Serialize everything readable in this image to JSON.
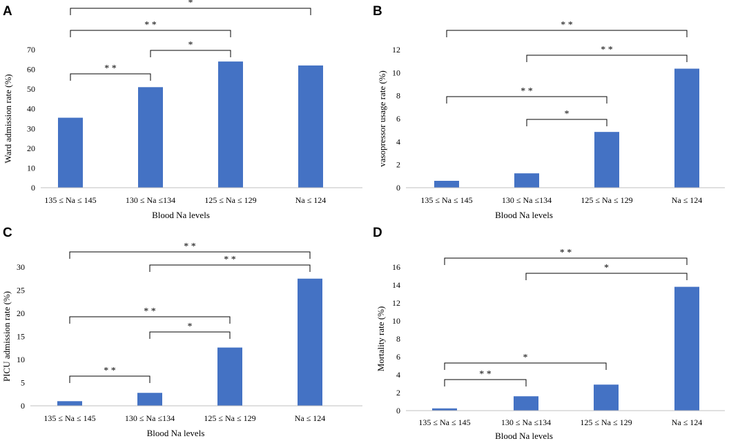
{
  "chart_data": [
    {
      "panel": "A",
      "type": "bar",
      "categories": [
        "135 ≤ Na ≤ 145",
        "130 ≤ Na ≤134",
        "125 ≤ Na ≤ 129",
        "Na ≤ 124"
      ],
      "values": [
        35.5,
        51,
        64,
        62
      ],
      "ylabel": "Ward admission rate (%)",
      "xlabel": "Blood Na levels",
      "ylim": [
        0,
        70
      ],
      "yticks": [
        0,
        10,
        20,
        30,
        40,
        50,
        60,
        70
      ],
      "color": "#4472c4",
      "significance": [
        {
          "from": 0,
          "to": 3,
          "label": "*"
        },
        {
          "from": 0,
          "to": 2,
          "label": "* *"
        },
        {
          "from": 1,
          "to": 2,
          "label": "*"
        },
        {
          "from": 0,
          "to": 1,
          "label": "* *"
        }
      ]
    },
    {
      "panel": "B",
      "type": "bar",
      "categories": [
        "135 ≤ Na ≤ 145",
        "130 ≤ Na ≤134",
        "125 ≤ Na ≤ 129",
        "Na ≤ 124"
      ],
      "values": [
        0.6,
        1.25,
        4.85,
        10.35
      ],
      "ylabel": "vasopressor usage rate (%)",
      "xlabel": "Blood Na levels",
      "ylim": [
        0,
        12
      ],
      "yticks": [
        0,
        2,
        4,
        6,
        8,
        10,
        12
      ],
      "color": "#4472c4",
      "significance": [
        {
          "from": 0,
          "to": 3,
          "label": "* *"
        },
        {
          "from": 1,
          "to": 3,
          "label": "* *"
        },
        {
          "from": 0,
          "to": 2,
          "label": "* *"
        },
        {
          "from": 1,
          "to": 2,
          "label": "*"
        }
      ]
    },
    {
      "panel": "C",
      "type": "bar",
      "categories": [
        "135 ≤ Na ≤ 145",
        "130 ≤ Na ≤134",
        "125 ≤ Na ≤ 129",
        "Na ≤ 124"
      ],
      "values": [
        1,
        2.8,
        12.6,
        27.5
      ],
      "ylabel": "PICU admission rate (%)",
      "xlabel": "Blood Na levels",
      "ylim": [
        0,
        30
      ],
      "yticks": [
        0,
        5,
        10,
        15,
        20,
        25,
        30
      ],
      "color": "#4472c4",
      "significance": [
        {
          "from": 0,
          "to": 3,
          "label": "* *"
        },
        {
          "from": 1,
          "to": 3,
          "label": "* *"
        },
        {
          "from": 0,
          "to": 2,
          "label": "* *"
        },
        {
          "from": 1,
          "to": 2,
          "label": "*"
        },
        {
          "from": 0,
          "to": 1,
          "label": "* *"
        }
      ]
    },
    {
      "panel": "D",
      "type": "bar",
      "categories": [
        "135 ≤ Na ≤ 145",
        "130 ≤ Na ≤134",
        "125 ≤ Na ≤ 129",
        "Na ≤ 124"
      ],
      "values": [
        0.25,
        1.6,
        2.9,
        13.8
      ],
      "ylabel": "Mortality rate (%)",
      "xlabel": "Blood Na levels",
      "ylim": [
        0,
        16
      ],
      "yticks": [
        0,
        2,
        4,
        6,
        8,
        10,
        12,
        14,
        16
      ],
      "color": "#4472c4",
      "significance": [
        {
          "from": 0,
          "to": 3,
          "label": "* *"
        },
        {
          "from": 1,
          "to": 3,
          "label": "*"
        },
        {
          "from": 0,
          "to": 2,
          "label": "*"
        },
        {
          "from": 0,
          "to": 1,
          "label": "* *"
        }
      ]
    }
  ]
}
